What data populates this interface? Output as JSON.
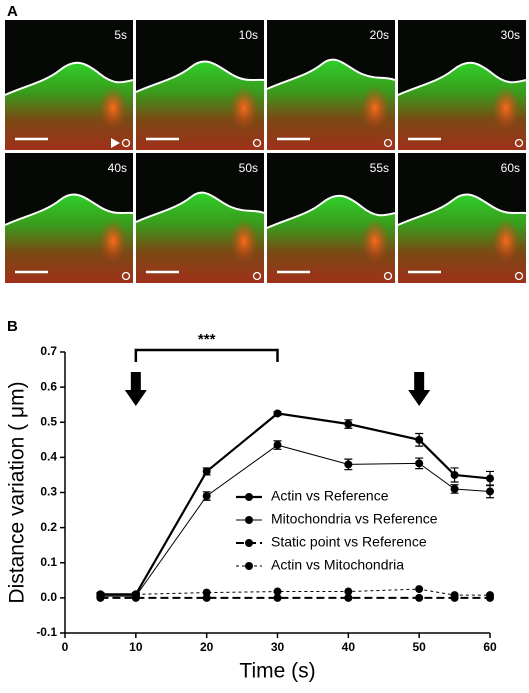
{
  "panel_a": {
    "label": "A",
    "frames": [
      "5s",
      "10s",
      "20s",
      "30s",
      "40s",
      "50s",
      "55s",
      "60s"
    ]
  },
  "chart_data": {
    "type": "line",
    "panel_label": "B",
    "xlabel": "Time (s)",
    "ylabel": "Distance variation ( μm)",
    "x": [
      5,
      10,
      20,
      30,
      40,
      50,
      55,
      60
    ],
    "series": [
      {
        "name": "Actin vs Reference",
        "color": "#000000",
        "dash": "solid",
        "width": 2.2,
        "values": [
          0.01,
          0.01,
          0.36,
          0.525,
          0.495,
          0.45,
          0.35,
          0.34
        ],
        "errors": [
          0.005,
          0.005,
          0.01,
          0.005,
          0.012,
          0.018,
          0.02,
          0.02
        ]
      },
      {
        "name": "Mitochondria vs Reference",
        "color": "#000000",
        "dash": "solid",
        "width": 1,
        "values": [
          0.005,
          0.005,
          0.29,
          0.435,
          0.38,
          0.383,
          0.31,
          0.303
        ],
        "errors": [
          0.005,
          0.005,
          0.012,
          0.012,
          0.015,
          0.015,
          0.012,
          0.018
        ]
      },
      {
        "name": "Static point vs Reference",
        "color": "#000000",
        "dash": "dashed",
        "width": 2,
        "values": [
          0,
          0,
          0,
          0,
          0,
          0,
          0,
          0
        ]
      },
      {
        "name": "Actin vs Mitochondria",
        "color": "#000000",
        "dash": "dotted",
        "width": 1,
        "values": [
          0.01,
          0.01,
          0.015,
          0.018,
          0.018,
          0.025,
          0.008,
          0.008
        ]
      }
    ],
    "xlim": [
      0,
      60
    ],
    "xticks": [
      0,
      10,
      20,
      30,
      40,
      50,
      60
    ],
    "ylim": [
      -0.1,
      0.7
    ],
    "yticks": [
      {
        "value": -0.1,
        "label": "-0.1"
      },
      {
        "value": 0,
        "label": "0.0"
      },
      0.1,
      0.2,
      0.3,
      0.4,
      0.5,
      0.6,
      0.7
    ],
    "bracket": {
      "label": "***",
      "x": [
        10,
        30
      ]
    },
    "arrows": [
      10,
      50
    ]
  }
}
